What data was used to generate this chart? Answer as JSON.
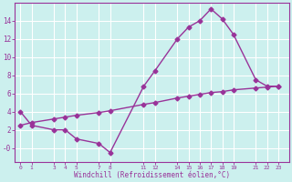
{
  "xlabel": "Windchill (Refroidissement éolien,°C)",
  "background_color": "#ccf0ee",
  "grid_color": "#ffffff",
  "line_color": "#993399",
  "x_ticks": [
    0,
    1,
    3,
    4,
    5,
    7,
    8,
    11,
    12,
    14,
    15,
    16,
    17,
    18,
    19,
    21,
    22,
    23
  ],
  "curve1_x": [
    0,
    1,
    3,
    4,
    5,
    7,
    8,
    11,
    12,
    14,
    15,
    16,
    17,
    18,
    19,
    21,
    22,
    23
  ],
  "curve1_y": [
    4.0,
    2.5,
    2.0,
    2.0,
    1.0,
    0.5,
    -0.5,
    6.8,
    8.5,
    12.0,
    13.3,
    14.0,
    15.3,
    14.2,
    12.5,
    7.5,
    6.8,
    6.8
  ],
  "curve2_x": [
    0,
    1,
    3,
    4,
    5,
    7,
    8,
    11,
    12,
    14,
    15,
    16,
    17,
    18,
    19,
    21,
    22,
    23
  ],
  "curve2_y": [
    2.5,
    2.8,
    3.2,
    3.4,
    3.6,
    3.9,
    4.1,
    4.8,
    5.0,
    5.5,
    5.7,
    5.9,
    6.1,
    6.2,
    6.4,
    6.6,
    6.7,
    6.8
  ],
  "ylim": [
    -1.5,
    16.0
  ],
  "xlim": [
    -0.5,
    24.0
  ],
  "yticks": [
    0,
    2,
    4,
    6,
    8,
    10,
    12,
    14
  ],
  "ytick_labels": [
    "-0",
    "2",
    "4",
    "6",
    "8",
    "10",
    "12",
    "14"
  ],
  "marker": "D",
  "markersize": 2.5,
  "linewidth": 1.0
}
